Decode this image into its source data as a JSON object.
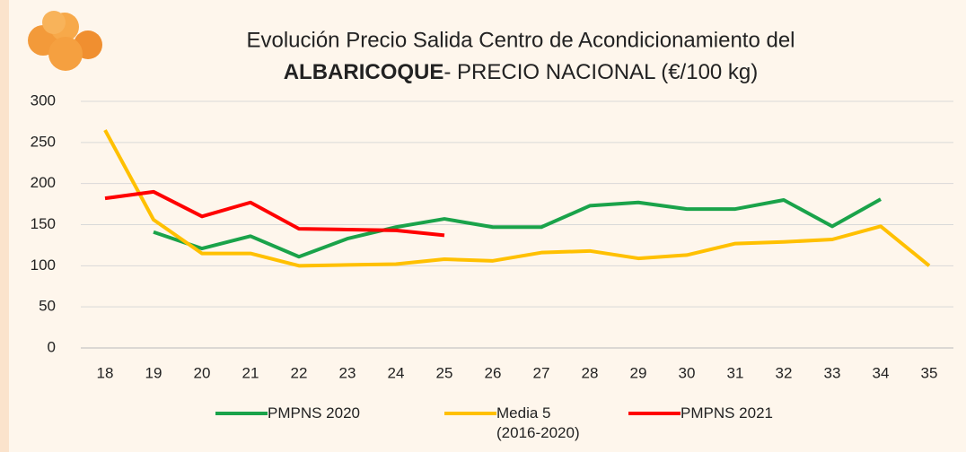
{
  "chart_data": {
    "type": "line",
    "title": "Evolución Precio Salida Centro de Acondicionamiento del",
    "title_bold": "ALBARICOQUE",
    "title_rest": "- PRECIO NACIONAL (€/100 kg)",
    "categories": [
      18,
      19,
      20,
      21,
      22,
      23,
      24,
      25,
      26,
      27,
      28,
      29,
      30,
      31,
      32,
      33,
      34,
      35
    ],
    "series": [
      {
        "name": "PMPNS 2020",
        "color": "#1aa34a",
        "values": [
          null,
          141,
          121,
          136,
          111,
          133,
          147,
          157,
          147,
          147,
          173,
          177,
          169,
          169,
          180,
          148,
          181,
          null
        ]
      },
      {
        "name": "Media 5 (2016-2020)",
        "color": "#ffc000",
        "values": [
          265,
          156,
          115,
          115,
          100,
          101,
          102,
          108,
          106,
          116,
          118,
          109,
          113,
          127,
          129,
          132,
          148,
          100
        ]
      },
      {
        "name": "PMPNS 2021",
        "color": "#ff0000",
        "values": [
          182,
          190,
          160,
          177,
          145,
          144,
          143,
          137,
          null,
          null,
          null,
          null,
          null,
          null,
          null,
          null,
          null,
          null
        ]
      }
    ],
    "ylim": [
      0,
      300
    ],
    "yticks": [
      0,
      50,
      100,
      150,
      200,
      250,
      300
    ],
    "grid": true
  }
}
